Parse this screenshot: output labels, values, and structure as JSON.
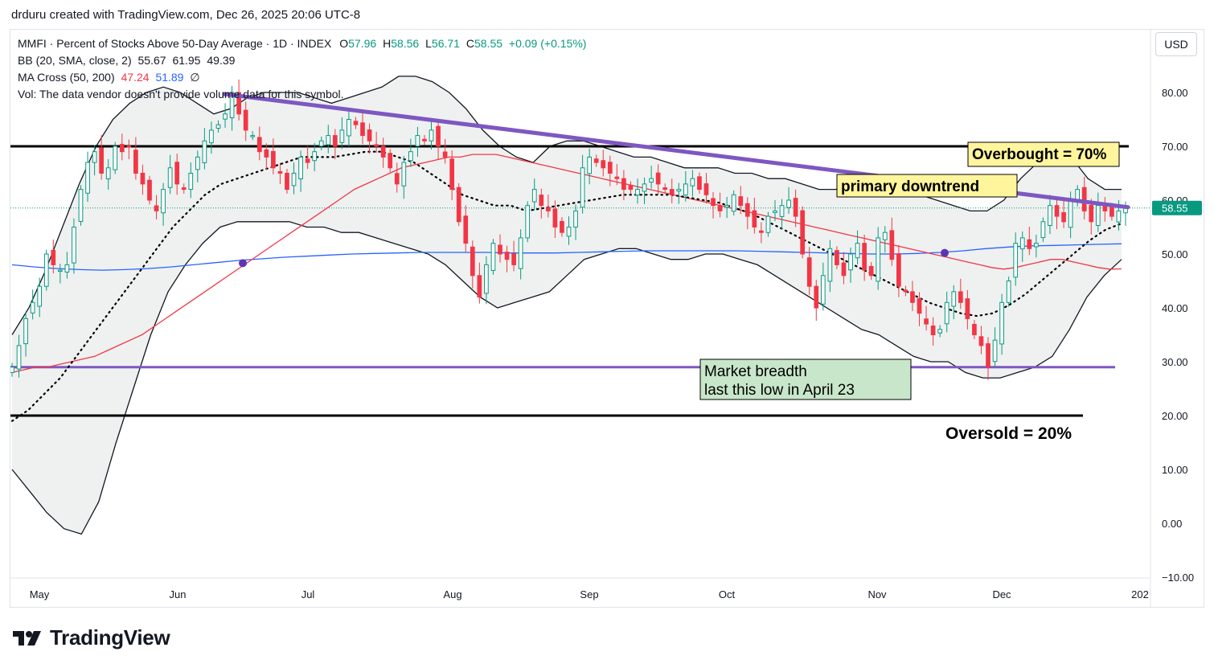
{
  "header": {
    "attribution": "drduru created with TradingView.com, Dec 26, 2025 20:06 UTC-8"
  },
  "legend": {
    "symbol": "MMFI · Percent of Stocks Above 50-Day Average · 1D · INDEX",
    "o_label": "O",
    "o": "57.96",
    "h_label": "H",
    "h": "58.56",
    "l_label": "L",
    "l": "56.71",
    "c_label": "C",
    "c": "58.55",
    "change": "+0.09 (+0.15%)",
    "bb_label": "BB (20, SMA, close, 2)",
    "bb_vals": [
      "55.67",
      "61.95",
      "49.39"
    ],
    "ma_label": "MA Cross (50, 200)",
    "ma_vals": [
      "47.24",
      "51.89"
    ],
    "ma_icon": "∅",
    "vol": "Vol: The data vendor doesn't provide volume data for this symbol."
  },
  "currency": "USD",
  "brand": {
    "name": "TradingView",
    "logo_icon": "tradingview-logo-icon"
  },
  "colors": {
    "up": "#089981",
    "down": "#f23645",
    "ma50": "#f23645",
    "ma200": "#2962ff",
    "trend": "#7e57c2",
    "bb": "#131722"
  },
  "chart_data": {
    "type": "candlestick",
    "ylim": [
      -10,
      88
    ],
    "yticks": [
      "80.00",
      "70.00",
      "60.00",
      "50.00",
      "40.00",
      "30.00",
      "20.00",
      "10.00",
      "0.00",
      "−10.00"
    ],
    "ytick_values": [
      80,
      70,
      60,
      50,
      40,
      30,
      20,
      10,
      0,
      -10
    ],
    "xlabels": [
      "May",
      "Jun",
      "Jul",
      "Aug",
      "Sep",
      "Oct",
      "Nov",
      "Dec",
      "202"
    ],
    "last_price": 58.55,
    "close": [
      29,
      33,
      38,
      41,
      44,
      50,
      48,
      47,
      48,
      55,
      62,
      67,
      69,
      65,
      66,
      70,
      69,
      70,
      65,
      63,
      60,
      58,
      62,
      66,
      63,
      62,
      65,
      68,
      71,
      73,
      74,
      76,
      80,
      76,
      73,
      72,
      69,
      68,
      66,
      65,
      62,
      65,
      68,
      67,
      69,
      71,
      72,
      70,
      73,
      75,
      74,
      72,
      71,
      70,
      68,
      66,
      63,
      67,
      69,
      72,
      71,
      73,
      70,
      68,
      62,
      56,
      52,
      46,
      42,
      48,
      52,
      50,
      49,
      48,
      53,
      59,
      62,
      59,
      58,
      55,
      54,
      55,
      58,
      66,
      68,
      67,
      66,
      65,
      64,
      62,
      62,
      62,
      63,
      64,
      63,
      62,
      61,
      62,
      63,
      64,
      62,
      61,
      59,
      58,
      59,
      61,
      59,
      57,
      55,
      54,
      57,
      58,
      59,
      60,
      57,
      50,
      44,
      40,
      46,
      51,
      48,
      46,
      50,
      52,
      47,
      46,
      53,
      54,
      49,
      44,
      43,
      41,
      39,
      37,
      35,
      36,
      41,
      43,
      41,
      38,
      35,
      33,
      29,
      34,
      41,
      45,
      52,
      53,
      51,
      52,
      56,
      59,
      57,
      56,
      60,
      62,
      58,
      56,
      59,
      58,
      57,
      58,
      58.55
    ],
    "ma50": [
      28,
      28.5,
      29,
      29,
      29.5,
      30,
      30.5,
      31,
      32,
      33,
      34,
      35,
      36.5,
      38,
      39.5,
      41,
      42.5,
      44,
      45.5,
      47,
      48.5,
      50,
      51.5,
      53,
      54.5,
      56,
      57.5,
      59,
      60.5,
      62,
      63,
      64,
      65,
      66,
      66.5,
      67,
      67.5,
      68,
      68,
      68.5,
      68.5,
      68.5,
      68,
      67.5,
      67,
      66.5,
      66,
      65.5,
      65,
      64.5,
      64,
      63.5,
      63,
      62.5,
      62,
      61.5,
      61,
      60.5,
      60,
      59.5,
      59,
      58.5,
      58,
      57.5,
      57,
      56.5,
      56,
      55.5,
      55,
      54.5,
      54,
      53.5,
      53,
      52.5,
      52,
      51.5,
      51,
      50.5,
      50,
      49.5,
      49,
      48.5,
      48,
      47.5,
      47.2,
      47.5,
      48,
      48.5,
      49,
      49,
      48.5,
      48,
      47.5,
      47.2,
      47.24
    ],
    "ma200": [
      48,
      47.6,
      47.3,
      47.1,
      47,
      47.1,
      47.3,
      47.6,
      48,
      48.4,
      48.8,
      49.1,
      49.4,
      49.6,
      49.8,
      50,
      50.1,
      50.2,
      50.3,
      50.3,
      50.3,
      50.3,
      50.2,
      50.2,
      50.2,
      50.3,
      50.4,
      50.5,
      50.6,
      50.6,
      50.6,
      50.6,
      50.6,
      50.5,
      50.4,
      50.3,
      50.2,
      50.1,
      50,
      50,
      50.1,
      50.3,
      50.6,
      51,
      51.3,
      51.5,
      51.6,
      51.7,
      51.8,
      51.89
    ],
    "bb_upper": [
      35,
      40,
      47,
      55,
      63,
      70,
      75,
      78,
      80,
      81,
      80,
      78,
      76,
      77,
      79,
      80,
      80,
      80,
      79,
      78,
      79,
      80,
      81,
      83,
      83,
      82,
      80,
      77,
      73,
      70,
      68,
      67,
      70,
      71,
      71,
      70,
      69,
      68,
      68,
      67,
      66,
      66,
      66,
      65,
      65,
      64,
      64,
      63,
      62,
      62,
      63,
      63,
      62,
      61,
      61,
      60,
      59,
      58,
      58,
      60,
      64,
      67,
      69,
      68,
      64,
      62,
      62
    ],
    "bb_lower": [
      10,
      6,
      2,
      -1,
      -2,
      4,
      15,
      25,
      35,
      43,
      48,
      52,
      55,
      56,
      56,
      56,
      56,
      55,
      55,
      54,
      54,
      53,
      52,
      51,
      50,
      48,
      45,
      42,
      40,
      41,
      42,
      43,
      46,
      49,
      50,
      51,
      51,
      50,
      49,
      49,
      50,
      50,
      49,
      48,
      46,
      44,
      42,
      40,
      38,
      36,
      35,
      33,
      31,
      30,
      30,
      28,
      27,
      27,
      28,
      29,
      31,
      36,
      42,
      46,
      49
    ],
    "bb_mid": [
      19,
      21,
      24,
      27,
      31,
      35,
      39,
      43,
      47,
      51,
      55,
      58,
      61,
      63,
      64,
      65,
      66,
      67,
      68,
      68,
      68,
      68.5,
      69,
      69,
      68,
      67,
      65,
      63,
      61,
      60,
      59,
      59,
      58,
      58.5,
      59,
      59.5,
      60,
      60.5,
      61,
      61,
      61,
      61,
      60.5,
      60,
      59.5,
      58.5,
      57.5,
      56,
      54.5,
      53,
      51.5,
      50,
      48.5,
      47,
      45.5,
      44,
      42.5,
      41,
      40,
      39,
      38.5,
      39,
      40.5,
      42.5,
      45,
      47.5,
      50,
      52.5,
      54.5,
      55.67
    ]
  },
  "annotations": {
    "overbought": "Overbought = 70%",
    "downtrend": "primary downtrend",
    "breadth_line1": "Market breadth",
    "breadth_line2": "last this low in April 23",
    "oversold": "Oversold = 20%"
  }
}
